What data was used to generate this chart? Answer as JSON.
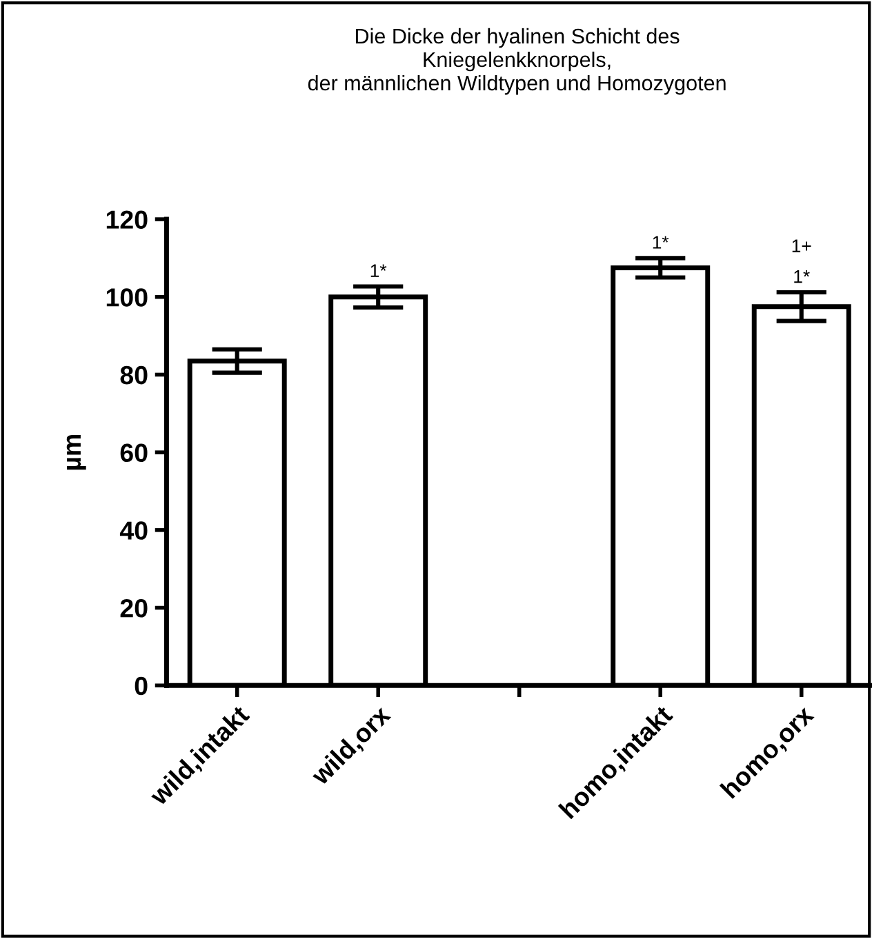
{
  "chart_data": {
    "type": "bar",
    "title": "Die Dicke der hyalinen Schicht des\nKniegelenkknorpels,\nder männlichen Wildtypen und Homozygoten",
    "ylabel": "µm",
    "categories": [
      "wild,intakt",
      "wild,orx",
      null,
      "homo,intakt",
      "homo,orx"
    ],
    "values": [
      83.5,
      100,
      null,
      107.5,
      97.5
    ],
    "errors": [
      3,
      2.7,
      null,
      2.5,
      3.7
    ],
    "color": "#ffffff",
    "ylim": [
      0,
      120
    ],
    "yticks": [
      0,
      20,
      40,
      60,
      80,
      100,
      120
    ],
    "grid": false,
    "legend": false,
    "annotations": [
      {
        "text": "1*",
        "x": "wild,orx",
        "y": 102.7
      },
      {
        "text": "1*",
        "x": "homo,intakt",
        "y": 110
      },
      {
        "text": "1*",
        "x": "homo,orx",
        "y": 101.2
      },
      {
        "text": "1+",
        "x": "homo,orx",
        "y": 101.2
      }
    ]
  }
}
